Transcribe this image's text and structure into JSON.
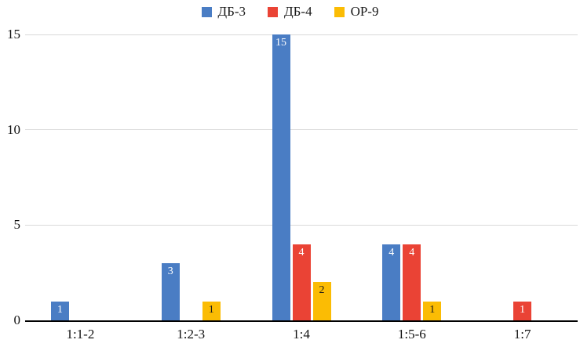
{
  "chart_data": {
    "type": "bar",
    "title": "",
    "xlabel": "",
    "ylabel": "",
    "categories": [
      "1:1-2",
      "1:2-3",
      "1:4",
      "1:5-6",
      "1:7"
    ],
    "series": [
      {
        "name": "ДБ-3",
        "color": "#4a7dc4",
        "label_color": "#ffffff",
        "values": [
          1,
          3,
          15,
          4,
          0
        ]
      },
      {
        "name": "ДБ-4",
        "color": "#ea4335",
        "label_color": "#ffffff",
        "values": [
          0,
          0,
          4,
          4,
          1
        ]
      },
      {
        "name": "ОР-9",
        "color": "#fbbc04",
        "label_color": "#1a1a1a",
        "values": [
          0,
          1,
          2,
          1,
          0
        ]
      }
    ],
    "y_ticks": [
      0,
      5,
      10,
      15
    ],
    "ylim": [
      0,
      15
    ],
    "grid": true,
    "legend_position": "top",
    "bar_value_labels_shown": true
  }
}
